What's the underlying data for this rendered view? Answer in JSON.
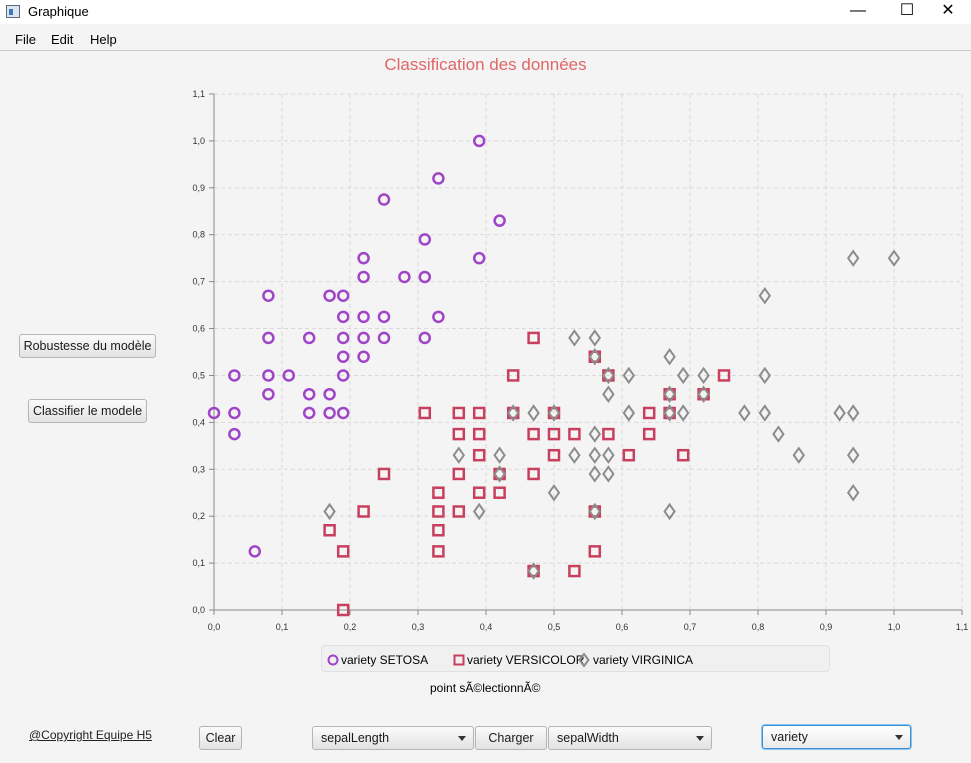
{
  "window": {
    "title": "Graphique",
    "minimize_glyph": "—",
    "maximize_glyph": "☐",
    "close_glyph": "✕"
  },
  "menu": [
    "File",
    "Edit",
    "Help"
  ],
  "left_panel": {
    "robustness_button": "Robustesse du modèle",
    "classify_button": "Classifier le modele",
    "copyright": "@Copyright Equipe H5"
  },
  "bottom_bar": {
    "clear_button": "Clear",
    "x_select": "sepalLength",
    "load_button": "Charger",
    "y_select": "sepalWidth",
    "category_select": "variety"
  },
  "status": "point sÃ©lectionnÃ©",
  "colors": {
    "title": "#e06666",
    "setosa": "#a044c8",
    "versicolor": "#c8405e",
    "virginica": "#8c8c8c"
  },
  "chart_data": {
    "type": "scatter",
    "title": "Classification des données",
    "xlim": [
      0,
      1.1
    ],
    "ylim": [
      0,
      1.1
    ],
    "x_ticks": [
      "0,0",
      "0,1",
      "0,2",
      "0,3",
      "0,4",
      "0,5",
      "0,6",
      "0,7",
      "0,8",
      "0,9",
      "1,0",
      "1,1"
    ],
    "y_ticks": [
      "0,0",
      "0,1",
      "0,2",
      "0,3",
      "0,4",
      "0,5",
      "0,6",
      "0,7",
      "0,8",
      "0,9",
      "1,0",
      "1,1"
    ],
    "grid": true,
    "legend_position": "bottom",
    "series": [
      {
        "name": "variety SETOSA",
        "marker": "circle",
        "points": [
          [
            0.39,
            1.0
          ],
          [
            0.33,
            0.92
          ],
          [
            0.25,
            0.875
          ],
          [
            0.42,
            0.83
          ],
          [
            0.31,
            0.79
          ],
          [
            0.22,
            0.75
          ],
          [
            0.39,
            0.75
          ],
          [
            0.22,
            0.71
          ],
          [
            0.28,
            0.71
          ],
          [
            0.31,
            0.71
          ],
          [
            0.08,
            0.67
          ],
          [
            0.17,
            0.67
          ],
          [
            0.19,
            0.67
          ],
          [
            0.19,
            0.625
          ],
          [
            0.22,
            0.625
          ],
          [
            0.25,
            0.625
          ],
          [
            0.33,
            0.625
          ],
          [
            0.08,
            0.58
          ],
          [
            0.14,
            0.58
          ],
          [
            0.19,
            0.58
          ],
          [
            0.22,
            0.58
          ],
          [
            0.25,
            0.58
          ],
          [
            0.31,
            0.58
          ],
          [
            0.19,
            0.54
          ],
          [
            0.22,
            0.54
          ],
          [
            0.03,
            0.5
          ],
          [
            0.08,
            0.5
          ],
          [
            0.11,
            0.5
          ],
          [
            0.19,
            0.5
          ],
          [
            0.08,
            0.46
          ],
          [
            0.14,
            0.46
          ],
          [
            0.17,
            0.46
          ],
          [
            0.0,
            0.42
          ],
          [
            0.03,
            0.42
          ],
          [
            0.14,
            0.42
          ],
          [
            0.17,
            0.42
          ],
          [
            0.19,
            0.42
          ],
          [
            0.03,
            0.375
          ],
          [
            0.06,
            0.125
          ]
        ]
      },
      {
        "name": "variety VERSICOLOR",
        "marker": "square",
        "points": [
          [
            0.47,
            0.58
          ],
          [
            0.56,
            0.54
          ],
          [
            0.44,
            0.5
          ],
          [
            0.58,
            0.5
          ],
          [
            0.75,
            0.5
          ],
          [
            0.67,
            0.46
          ],
          [
            0.72,
            0.46
          ],
          [
            0.31,
            0.42
          ],
          [
            0.36,
            0.42
          ],
          [
            0.39,
            0.42
          ],
          [
            0.44,
            0.42
          ],
          [
            0.5,
            0.42
          ],
          [
            0.64,
            0.42
          ],
          [
            0.67,
            0.42
          ],
          [
            0.36,
            0.375
          ],
          [
            0.39,
            0.375
          ],
          [
            0.47,
            0.375
          ],
          [
            0.5,
            0.375
          ],
          [
            0.53,
            0.375
          ],
          [
            0.58,
            0.375
          ],
          [
            0.64,
            0.375
          ],
          [
            0.39,
            0.33
          ],
          [
            0.5,
            0.33
          ],
          [
            0.61,
            0.33
          ],
          [
            0.69,
            0.33
          ],
          [
            0.25,
            0.29
          ],
          [
            0.36,
            0.29
          ],
          [
            0.42,
            0.29
          ],
          [
            0.47,
            0.29
          ],
          [
            0.33,
            0.25
          ],
          [
            0.39,
            0.25
          ],
          [
            0.42,
            0.25
          ],
          [
            0.22,
            0.21
          ],
          [
            0.33,
            0.21
          ],
          [
            0.36,
            0.21
          ],
          [
            0.56,
            0.21
          ],
          [
            0.17,
            0.17
          ],
          [
            0.33,
            0.17
          ],
          [
            0.19,
            0.125
          ],
          [
            0.33,
            0.125
          ],
          [
            0.56,
            0.125
          ],
          [
            0.47,
            0.083
          ],
          [
            0.53,
            0.083
          ],
          [
            0.19,
            0.0
          ]
        ]
      },
      {
        "name": "variety VIRGINICA",
        "marker": "diamond",
        "points": [
          [
            0.94,
            0.75
          ],
          [
            1.0,
            0.75
          ],
          [
            0.81,
            0.67
          ],
          [
            0.53,
            0.58
          ],
          [
            0.56,
            0.58
          ],
          [
            0.56,
            0.54
          ],
          [
            0.67,
            0.54
          ],
          [
            0.58,
            0.5
          ],
          [
            0.61,
            0.5
          ],
          [
            0.69,
            0.5
          ],
          [
            0.72,
            0.5
          ],
          [
            0.81,
            0.5
          ],
          [
            0.58,
            0.46
          ],
          [
            0.67,
            0.46
          ],
          [
            0.72,
            0.46
          ],
          [
            0.44,
            0.42
          ],
          [
            0.47,
            0.42
          ],
          [
            0.5,
            0.42
          ],
          [
            0.61,
            0.42
          ],
          [
            0.67,
            0.42
          ],
          [
            0.69,
            0.42
          ],
          [
            0.78,
            0.42
          ],
          [
            0.81,
            0.42
          ],
          [
            0.92,
            0.42
          ],
          [
            0.94,
            0.42
          ],
          [
            0.56,
            0.375
          ],
          [
            0.83,
            0.375
          ],
          [
            0.36,
            0.33
          ],
          [
            0.42,
            0.33
          ],
          [
            0.53,
            0.33
          ],
          [
            0.56,
            0.33
          ],
          [
            0.58,
            0.33
          ],
          [
            0.86,
            0.33
          ],
          [
            0.94,
            0.33
          ],
          [
            0.42,
            0.29
          ],
          [
            0.56,
            0.29
          ],
          [
            0.58,
            0.29
          ],
          [
            0.5,
            0.25
          ],
          [
            0.94,
            0.25
          ],
          [
            0.17,
            0.21
          ],
          [
            0.39,
            0.21
          ],
          [
            0.56,
            0.21
          ],
          [
            0.67,
            0.21
          ],
          [
            0.47,
            0.083
          ]
        ]
      }
    ]
  }
}
